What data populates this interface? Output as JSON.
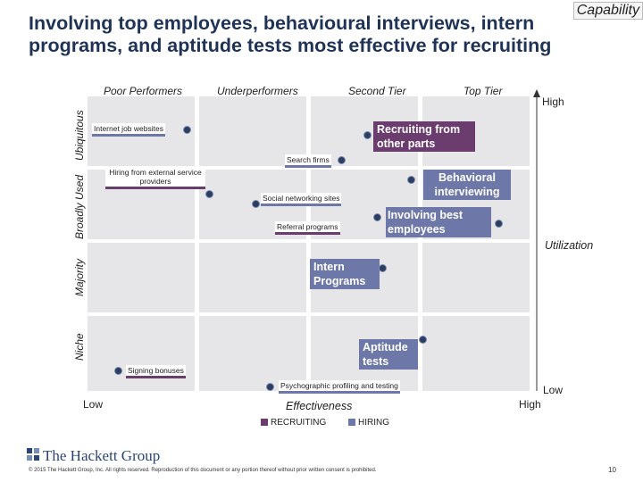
{
  "tag": "Capability",
  "title": "Involving top employees, behavioural interviews, intern programs, and aptitude tests most effective for recruiting",
  "columns": [
    "Poor Performers",
    "Underperformers",
    "Second Tier",
    "Top Tier"
  ],
  "rows": [
    "Ubiquitous",
    "Broadly Used",
    "Majority",
    "Niche"
  ],
  "utilization": {
    "label": "Utilization",
    "high": "High",
    "low": "Low"
  },
  "effectiveness": {
    "label": "Effectiveness",
    "low": "Low",
    "high": "High"
  },
  "items": {
    "internet_job_websites": "Internet job websites",
    "recruiting_other_parts": "Recruiting from other parts",
    "search_firms": "Search firms",
    "hiring_external": "Hiring from external service providers",
    "behavioral_interviewing": "Behavioral interviewing",
    "social_networking": "Social networking sites",
    "involving_best": "Involving best employees",
    "referral_programs": "Referral programs",
    "intern_programs": "Intern Programs",
    "aptitude_tests": "Aptitude tests",
    "signing_bonuses": "Signing bonuses",
    "psychographic": "Psychographic profiling and testing"
  },
  "legend": [
    "RECRUITING",
    "HIRING"
  ],
  "colors": {
    "recruiting": "#6b3d6f",
    "hiring": "#6e78a8",
    "grid": "#e6e6e8",
    "title": "#1f3357"
  },
  "footer": {
    "logo": "The Hackett Group",
    "copyright": "© 2015 The Hackett Group, Inc. All rights reserved. Reproduction of this document or any portion thereof without prior written consent is prohibited.",
    "page": "10"
  }
}
